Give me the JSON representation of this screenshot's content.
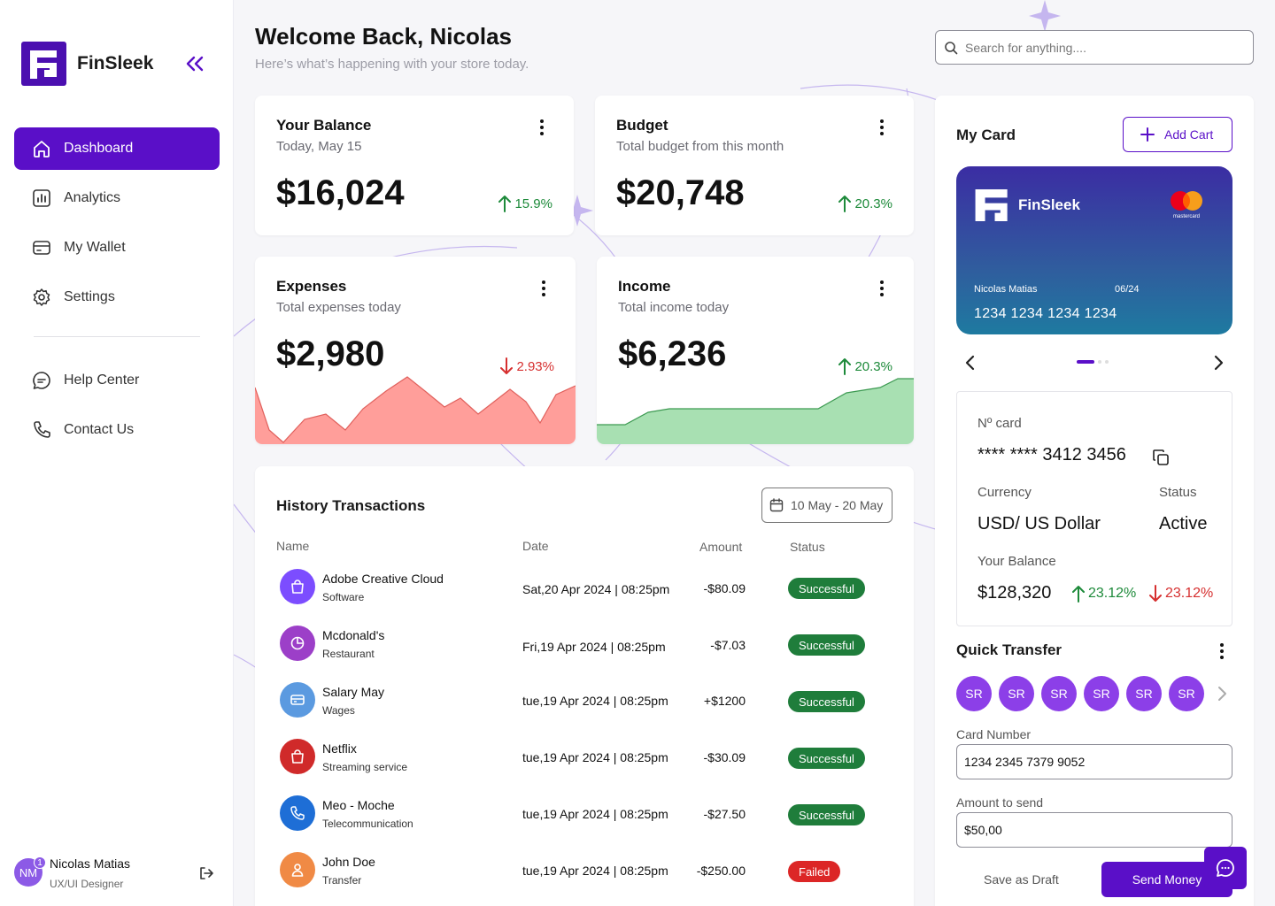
{
  "app": {
    "name": "FinSleek"
  },
  "sidebar": {
    "items": [
      {
        "label": "Dashboard",
        "icon": "home-icon"
      },
      {
        "label": "Analytics",
        "icon": "chart-icon"
      },
      {
        "label": "My Wallet",
        "icon": "wallet-icon"
      },
      {
        "label": "Settings",
        "icon": "gear-icon"
      }
    ],
    "support": [
      {
        "label": "Help Center",
        "icon": "chat-icon"
      },
      {
        "label": "Contact Us",
        "icon": "phone-icon"
      }
    ],
    "user": {
      "initials": "NM",
      "badge": "1",
      "name": "Nicolas Matias",
      "role": "UX/UI Designer"
    }
  },
  "header": {
    "title": "Welcome Back, Nicolas",
    "subtitle": "Here’s what’s happening with your store today.",
    "search_placeholder": "Search for anything...."
  },
  "stats": {
    "balance": {
      "title": "Your Balance",
      "subtitle": "Today, May 15",
      "value": "$16,024",
      "trend": "15.9%",
      "direction": "up"
    },
    "budget": {
      "title": "Budget",
      "subtitle": "Total budget from this month",
      "value": "$20,748",
      "trend": "20.3%",
      "direction": "up"
    },
    "expenses": {
      "title": "Expenses",
      "subtitle": "Total expenses today",
      "value": "$2,980",
      "trend": "2.93%",
      "direction": "down"
    },
    "income": {
      "title": "Income",
      "subtitle": "Total income today",
      "value": "$6,236",
      "trend": "20.3%",
      "direction": "up"
    }
  },
  "transactions": {
    "title": "History Transactions",
    "date_range": "10 May - 20 May",
    "headers": {
      "name": "Name",
      "date": "Date",
      "amount": "Amount",
      "status": "Status"
    },
    "rows": [
      {
        "name": "Adobe Creative Cloud",
        "category": "Software",
        "date": "Sat,20 Apr 2024 | 08:25pm",
        "amount": "-$80.09",
        "status": "Successful",
        "icon": "shopping-bag-icon",
        "color": "#7c4dff"
      },
      {
        "name": "Mcdonald's",
        "category": "Restaurant",
        "date": "Fri,19 Apr 2024 | 08:25pm",
        "amount": "-$7.03",
        "status": "Successful",
        "icon": "pie-chart-icon",
        "color": "#9c3fc8"
      },
      {
        "name": "Salary May",
        "category": "Wages",
        "date": "tue,19 Apr 2024 | 08:25pm",
        "amount": "+$1200",
        "status": "Successful",
        "icon": "credit-card-icon",
        "color": "#5b9ae0"
      },
      {
        "name": "Netflix",
        "category": "Streaming service",
        "date": "tue,19 Apr 2024 | 08:25pm",
        "amount": "-$30.09",
        "status": "Successful",
        "icon": "shopping-bag-icon",
        "color": "#d02a2a"
      },
      {
        "name": "Meo - Moche",
        "category": "Telecommunication",
        "date": "tue,19 Apr 2024 | 08:25pm",
        "amount": "-$27.50",
        "status": "Successful",
        "icon": "phone-icon",
        "color": "#1e6ed6"
      },
      {
        "name": "John Doe",
        "category": "Transfer",
        "date": "tue,19 Apr 2024 | 08:25pm",
        "amount": "-$250.00",
        "status": "Failed",
        "icon": "user-icon",
        "color": "#f08a45"
      }
    ]
  },
  "mycard": {
    "title": "My Card",
    "add_label": "Add Cart",
    "card": {
      "brand": "FinSleek",
      "network": "mastercard",
      "holder": "Nicolas Matias",
      "expiry": "06/24",
      "number": "1234 1234 1234 1234"
    },
    "carousel": {
      "active": 1,
      "total": 3
    },
    "info": {
      "no_label": "Nº card",
      "no_value": "**** **** 3412 3456",
      "currency_label": "Currency",
      "currency_value": "USD/ US Dollar",
      "status_label": "Status",
      "status_value": "Active",
      "balance_label": "Your Balance",
      "balance_value": "$128,320",
      "trend_up": "23.12%",
      "trend_down": "23.12%"
    }
  },
  "quick_transfer": {
    "title": "Quick Transfer",
    "contacts": [
      "SR",
      "SR",
      "SR",
      "SR",
      "SR",
      "SR"
    ],
    "card_label": "Card Number",
    "card_value": "1234 2345 7379 9052",
    "amount_label": "Amount to send",
    "amount_value": "$50,00",
    "draft_label": "Save as Draft",
    "send_label": "Send Money"
  },
  "colors": {
    "accent": "#5a0fc8",
    "success": "#1f7d3b",
    "danger": "#dc2626",
    "expense_fill": "#ff9e9a",
    "income_fill": "#a8e0b2"
  }
}
